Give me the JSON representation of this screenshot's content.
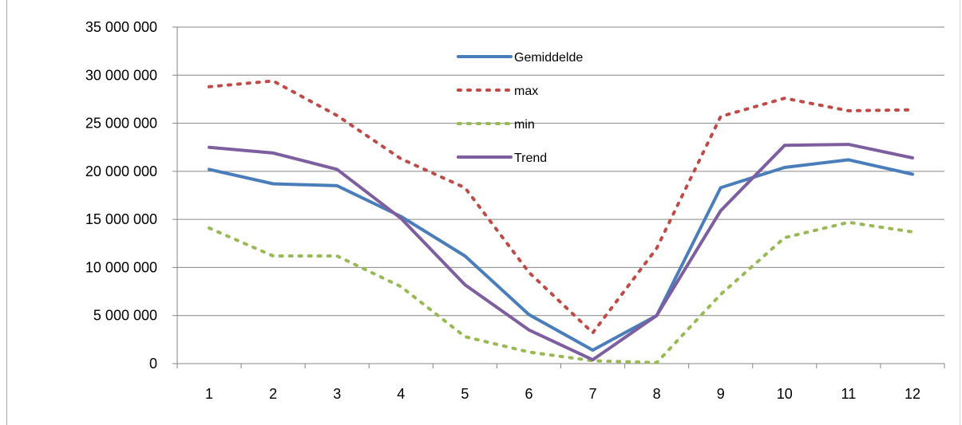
{
  "chart_data": {
    "type": "line",
    "title": "",
    "xlabel": "",
    "ylabel": "",
    "x": [
      1,
      2,
      3,
      4,
      5,
      6,
      7,
      8,
      9,
      10,
      11,
      12
    ],
    "x_tick_labels": [
      "1",
      "2",
      "3",
      "4",
      "5",
      "6",
      "7",
      "8",
      "9",
      "10",
      "11",
      "12"
    ],
    "ylim": [
      0,
      35000000
    ],
    "y_ticks": [
      0,
      5000000,
      10000000,
      15000000,
      20000000,
      25000000,
      30000000,
      35000000
    ],
    "y_tick_labels": [
      "0",
      "5 000 000",
      "10 000 000",
      "15 000 000",
      "20 000 000",
      "25 000 000",
      "30 000 000",
      "35 000 000"
    ],
    "grid": true,
    "legend_position": "top-center",
    "series": [
      {
        "name": "Gemiddelde",
        "color": "#4a7ebb",
        "style": "solid",
        "values": [
          20200000,
          18700000,
          18500000,
          15300000,
          11200000,
          5100000,
          1400000,
          5000000,
          18300000,
          20400000,
          21200000,
          19700000
        ]
      },
      {
        "name": "max",
        "color": "#be4b48",
        "style": "dotted",
        "values": [
          28800000,
          29400000,
          25800000,
          21300000,
          18300000,
          9500000,
          3200000,
          12000000,
          25700000,
          27600000,
          26300000,
          26400000
        ]
      },
      {
        "name": "min",
        "color": "#98b954",
        "style": "dotted",
        "values": [
          14100000,
          11200000,
          11200000,
          8000000,
          2800000,
          1200000,
          300000,
          100000,
          7200000,
          13100000,
          14700000,
          13700000
        ]
      },
      {
        "name": "Trend",
        "color": "#7d5fa0",
        "style": "solid",
        "values": [
          22500000,
          21900000,
          20200000,
          15100000,
          8200000,
          3500000,
          400000,
          5000000,
          15900000,
          22700000,
          22800000,
          21400000
        ]
      }
    ]
  }
}
